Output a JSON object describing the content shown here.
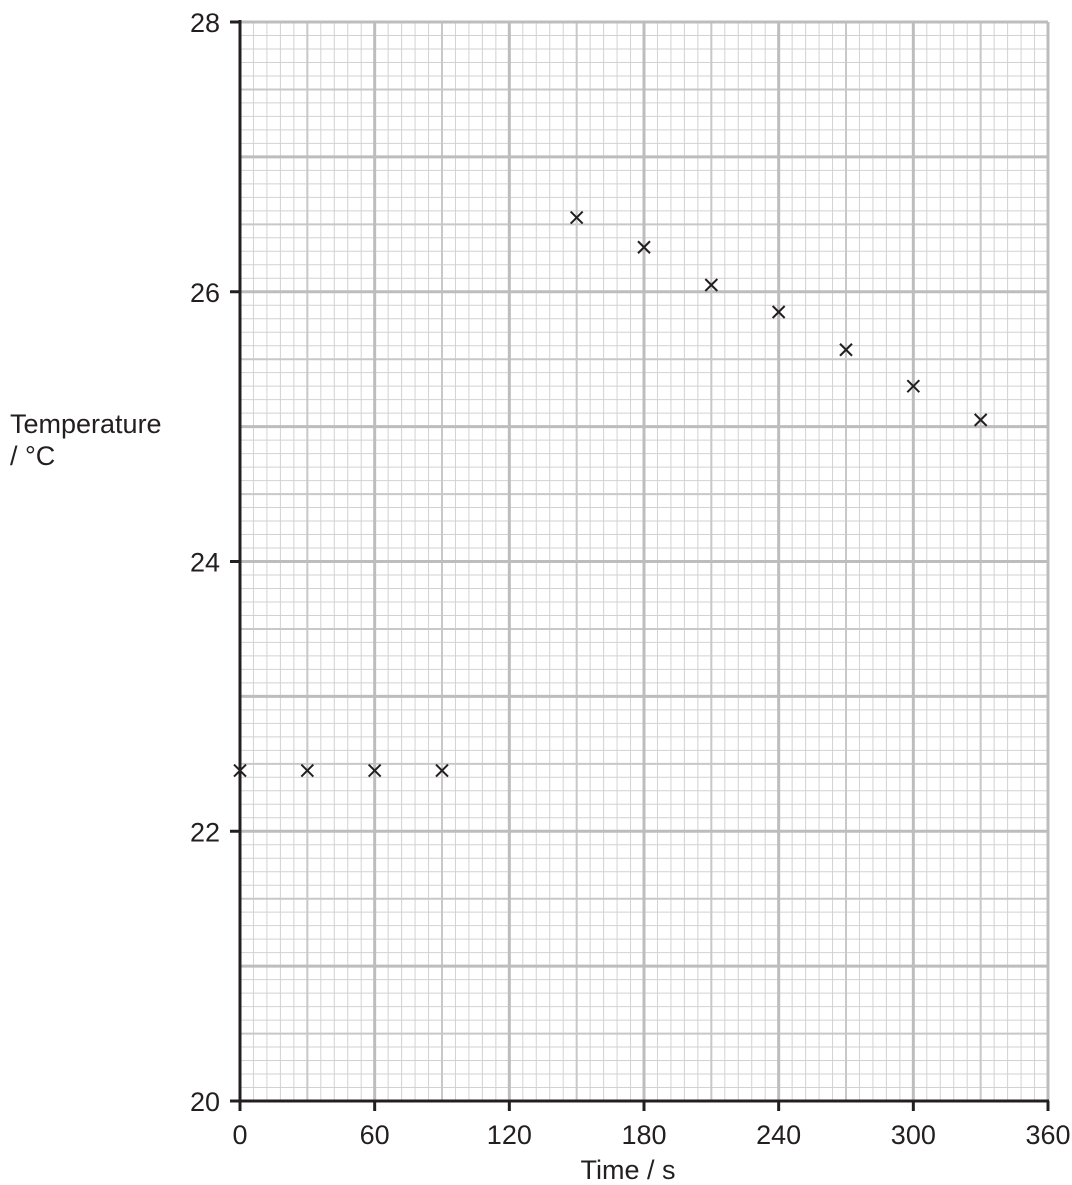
{
  "chart_data": {
    "type": "scatter",
    "xlabel": "Time / s",
    "ylabel_line1": "Temperature",
    "ylabel_line2": "/ °C",
    "xlim": [
      0,
      360
    ],
    "ylim": [
      20,
      28
    ],
    "x_ticks": [
      "0",
      "60",
      "120",
      "180",
      "240",
      "300",
      "360"
    ],
    "y_ticks": [
      "20",
      "22",
      "24",
      "26",
      "28"
    ],
    "grid": "on",
    "marker": "cross",
    "points": [
      {
        "x": 0,
        "y": 22.45
      },
      {
        "x": 30,
        "y": 22.45
      },
      {
        "x": 60,
        "y": 22.45
      },
      {
        "x": 90,
        "y": 22.45
      },
      {
        "x": 150,
        "y": 26.55
      },
      {
        "x": 180,
        "y": 26.33
      },
      {
        "x": 210,
        "y": 26.05
      },
      {
        "x": 240,
        "y": 25.85
      },
      {
        "x": 270,
        "y": 25.57
      },
      {
        "x": 300,
        "y": 25.3
      },
      {
        "x": 330,
        "y": 25.05
      }
    ]
  }
}
